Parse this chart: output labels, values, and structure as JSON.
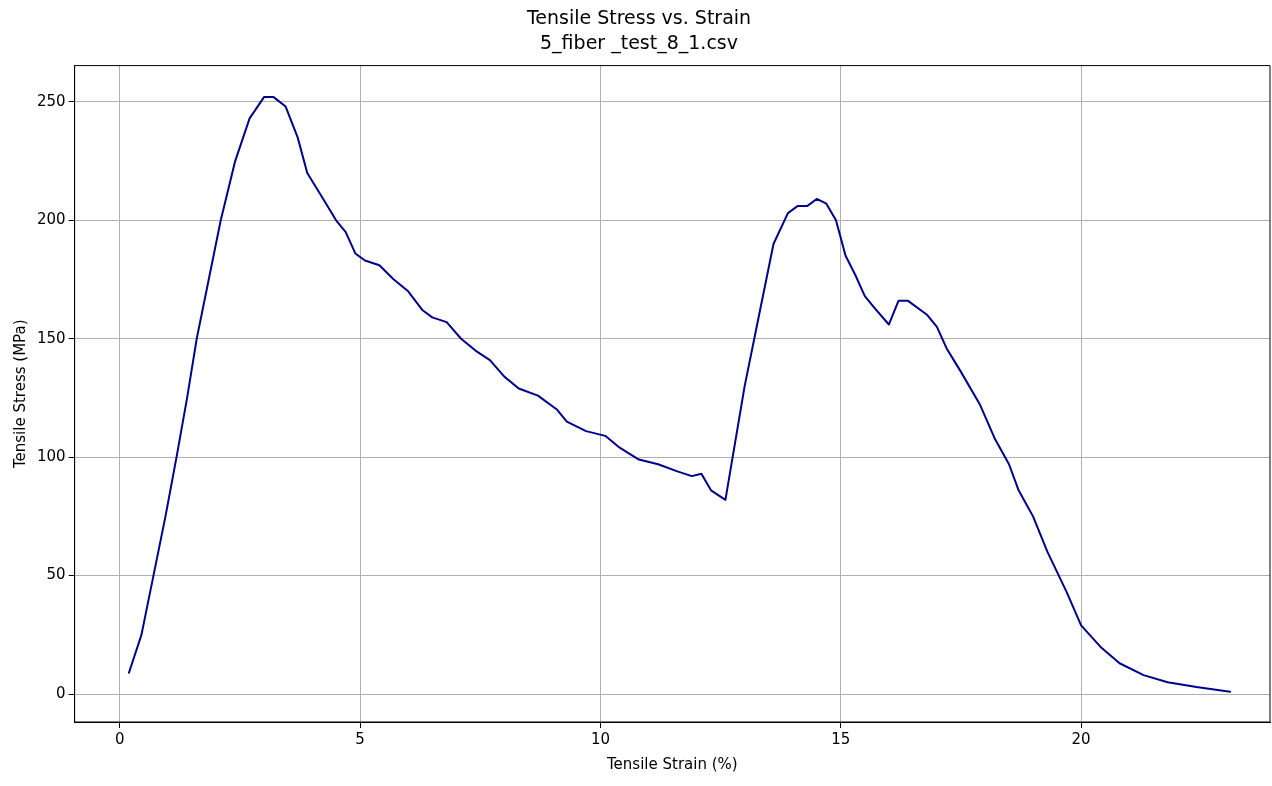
{
  "chart_data": {
    "type": "line",
    "title": "Tensile Stress vs. Strain",
    "subtitle": "5_fiber _test_8_1.csv",
    "xlabel": "Tensile Strain (%)",
    "ylabel": "Tensile Stress (MPa)",
    "xlim": [
      -0.94,
      23.93
    ],
    "ylim": [
      -11.8,
      265.3
    ],
    "xticks": [
      0,
      5,
      10,
      15,
      20
    ],
    "yticks": [
      0,
      50,
      100,
      150,
      200,
      250
    ],
    "grid": true,
    "legend": false,
    "marker": "none",
    "line_style": "solid",
    "series": [
      {
        "color": "#00008b",
        "x": [
          0.19,
          0.45,
          0.7,
          0.95,
          1.18,
          1.4,
          1.6,
          1.85,
          2.1,
          2.4,
          2.7,
          3.0,
          3.2,
          3.45,
          3.7,
          3.9,
          4.2,
          4.5,
          4.7,
          4.9,
          5.1,
          5.4,
          5.7,
          6.0,
          6.3,
          6.5,
          6.8,
          7.1,
          7.4,
          7.7,
          8.0,
          8.3,
          8.7,
          9.1,
          9.3,
          9.7,
          10.1,
          10.4,
          10.8,
          11.2,
          11.6,
          11.9,
          12.1,
          12.3,
          12.6,
          12.75,
          13.0,
          13.3,
          13.6,
          13.9,
          14.1,
          14.3,
          14.5,
          14.7,
          14.9,
          15.1,
          15.3,
          15.5,
          15.7,
          16.0,
          16.2,
          16.4,
          16.8,
          17.0,
          17.2,
          17.5,
          17.9,
          18.2,
          18.5,
          18.7,
          19.0,
          19.3,
          19.7,
          20.0,
          20.4,
          20.8,
          21.3,
          21.8,
          22.4,
          23.1
        ],
        "values": [
          9,
          25,
          50,
          75,
          100,
          125,
          150,
          175,
          200,
          225,
          243,
          252,
          252,
          248,
          235,
          220,
          210,
          200,
          195,
          186,
          183,
          181,
          175,
          170,
          162,
          159,
          157,
          150,
          145,
          141,
          134,
          129,
          126,
          120,
          115,
          111,
          109,
          104,
          99,
          97,
          94,
          92,
          93,
          86,
          82,
          100,
          130,
          160,
          190,
          203,
          206,
          206,
          209,
          207,
          200,
          185,
          177,
          168,
          163,
          156,
          166,
          166,
          160,
          155,
          146,
          136,
          122,
          108,
          97,
          86,
          75,
          60,
          43,
          29,
          20,
          13,
          8,
          5,
          3,
          1
        ]
      }
    ]
  }
}
